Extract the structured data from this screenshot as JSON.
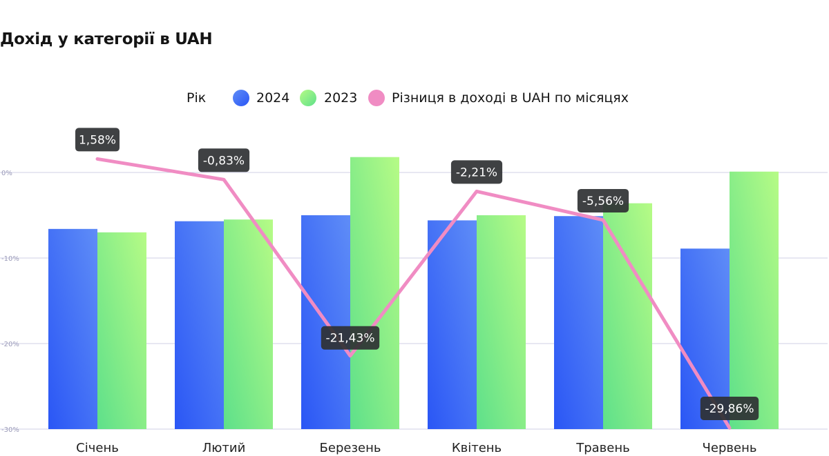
{
  "title": "Дохід у категорії в UAH",
  "chart_data": {
    "type": "bar",
    "title": "Дохід у категорії в UAH",
    "legend_title": "Рік",
    "categories": [
      "Січень",
      "Лютий",
      "Березень",
      "Квітень",
      "Травень",
      "Червень"
    ],
    "series": [
      {
        "name": "2024",
        "kind": "bar",
        "color_from": "#2a56f5",
        "color_to": "#5f8df7",
        "values": [
          -6.6,
          -5.7,
          -5.0,
          -5.6,
          -5.1,
          -8.9
        ]
      },
      {
        "name": "2023",
        "kind": "bar",
        "color_from": "#5ee08a",
        "color_to": "#b6fb86",
        "values": [
          -7.0,
          -5.5,
          1.8,
          -5.0,
          -3.6,
          0.1
        ]
      },
      {
        "name": "Різниця в доході в UAH по місяцях",
        "kind": "line",
        "color": "#f08cc3",
        "values": [
          1.58,
          -0.83,
          -21.43,
          -2.21,
          -5.56,
          -29.86
        ],
        "labels": [
          "1,58%",
          "-0,83%",
          "-21,43%",
          "-2,21%",
          "-5,56%",
          "-29,86%"
        ]
      }
    ],
    "y_ticks": [
      0,
      -10,
      -20,
      -30
    ],
    "y_tick_labels": [
      "0%",
      "-10%",
      "-20%",
      "-30%"
    ],
    "ylim": [
      -30,
      4
    ],
    "grid": true,
    "legend_position": "top-center"
  }
}
